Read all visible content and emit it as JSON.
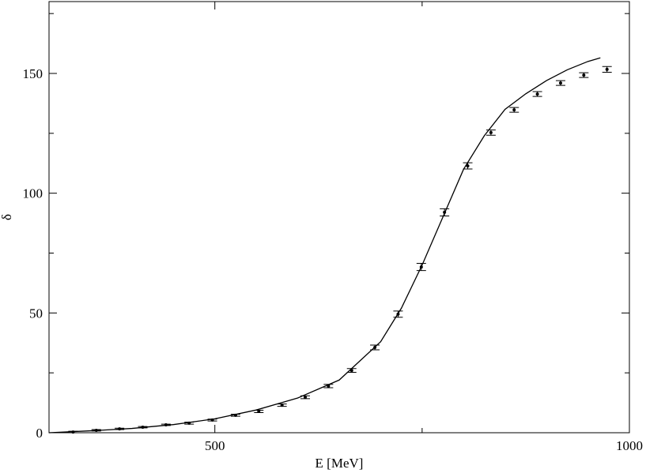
{
  "chart_data": {
    "type": "errorbar-line",
    "x_label": "E [MeV]",
    "y_label": "δ",
    "xlim": [
      300,
      1000
    ],
    "ylim": [
      0,
      180
    ],
    "xticks": [
      500,
      1000
    ],
    "xminorticks": [
      750
    ],
    "yticks": [
      0,
      50,
      100,
      150
    ],
    "yminorticks": [
      25,
      75,
      125,
      175
    ],
    "color": "#000000",
    "points": {
      "x": [
        329,
        357,
        385,
        413,
        441,
        469,
        497,
        525,
        553,
        581,
        609,
        637,
        665,
        693,
        721,
        749,
        777,
        805,
        833,
        861,
        889,
        917,
        945,
        973
      ],
      "values": [
        0.3,
        1.0,
        1.6,
        2.3,
        3.3,
        4.0,
        5.3,
        7.3,
        8.9,
        11.5,
        14.8,
        19.5,
        26.0,
        35.6,
        49.5,
        69.2,
        92.0,
        111.4,
        125.3,
        134.8,
        141.4,
        146.0,
        149.3,
        151.7
      ],
      "errors": [
        0.3,
        0.3,
        0.3,
        0.3,
        0.3,
        0.4,
        0.4,
        0.4,
        0.5,
        0.5,
        0.6,
        0.7,
        0.8,
        1.0,
        1.3,
        1.5,
        1.5,
        1.3,
        1.1,
        1.0,
        1.0,
        1.0,
        1.0,
        1.2
      ]
    },
    "curve": {
      "x": [
        300,
        350,
        400,
        450,
        500,
        550,
        600,
        650,
        700,
        725,
        750,
        775,
        800,
        825,
        850,
        875,
        900,
        925,
        950,
        965
      ],
      "values": [
        0,
        0.8,
        1.8,
        3.4,
        5.8,
        9.5,
        14.5,
        22,
        38,
        52,
        70,
        90,
        110,
        124,
        135,
        141.5,
        147,
        151.5,
        155,
        156.5
      ]
    }
  }
}
